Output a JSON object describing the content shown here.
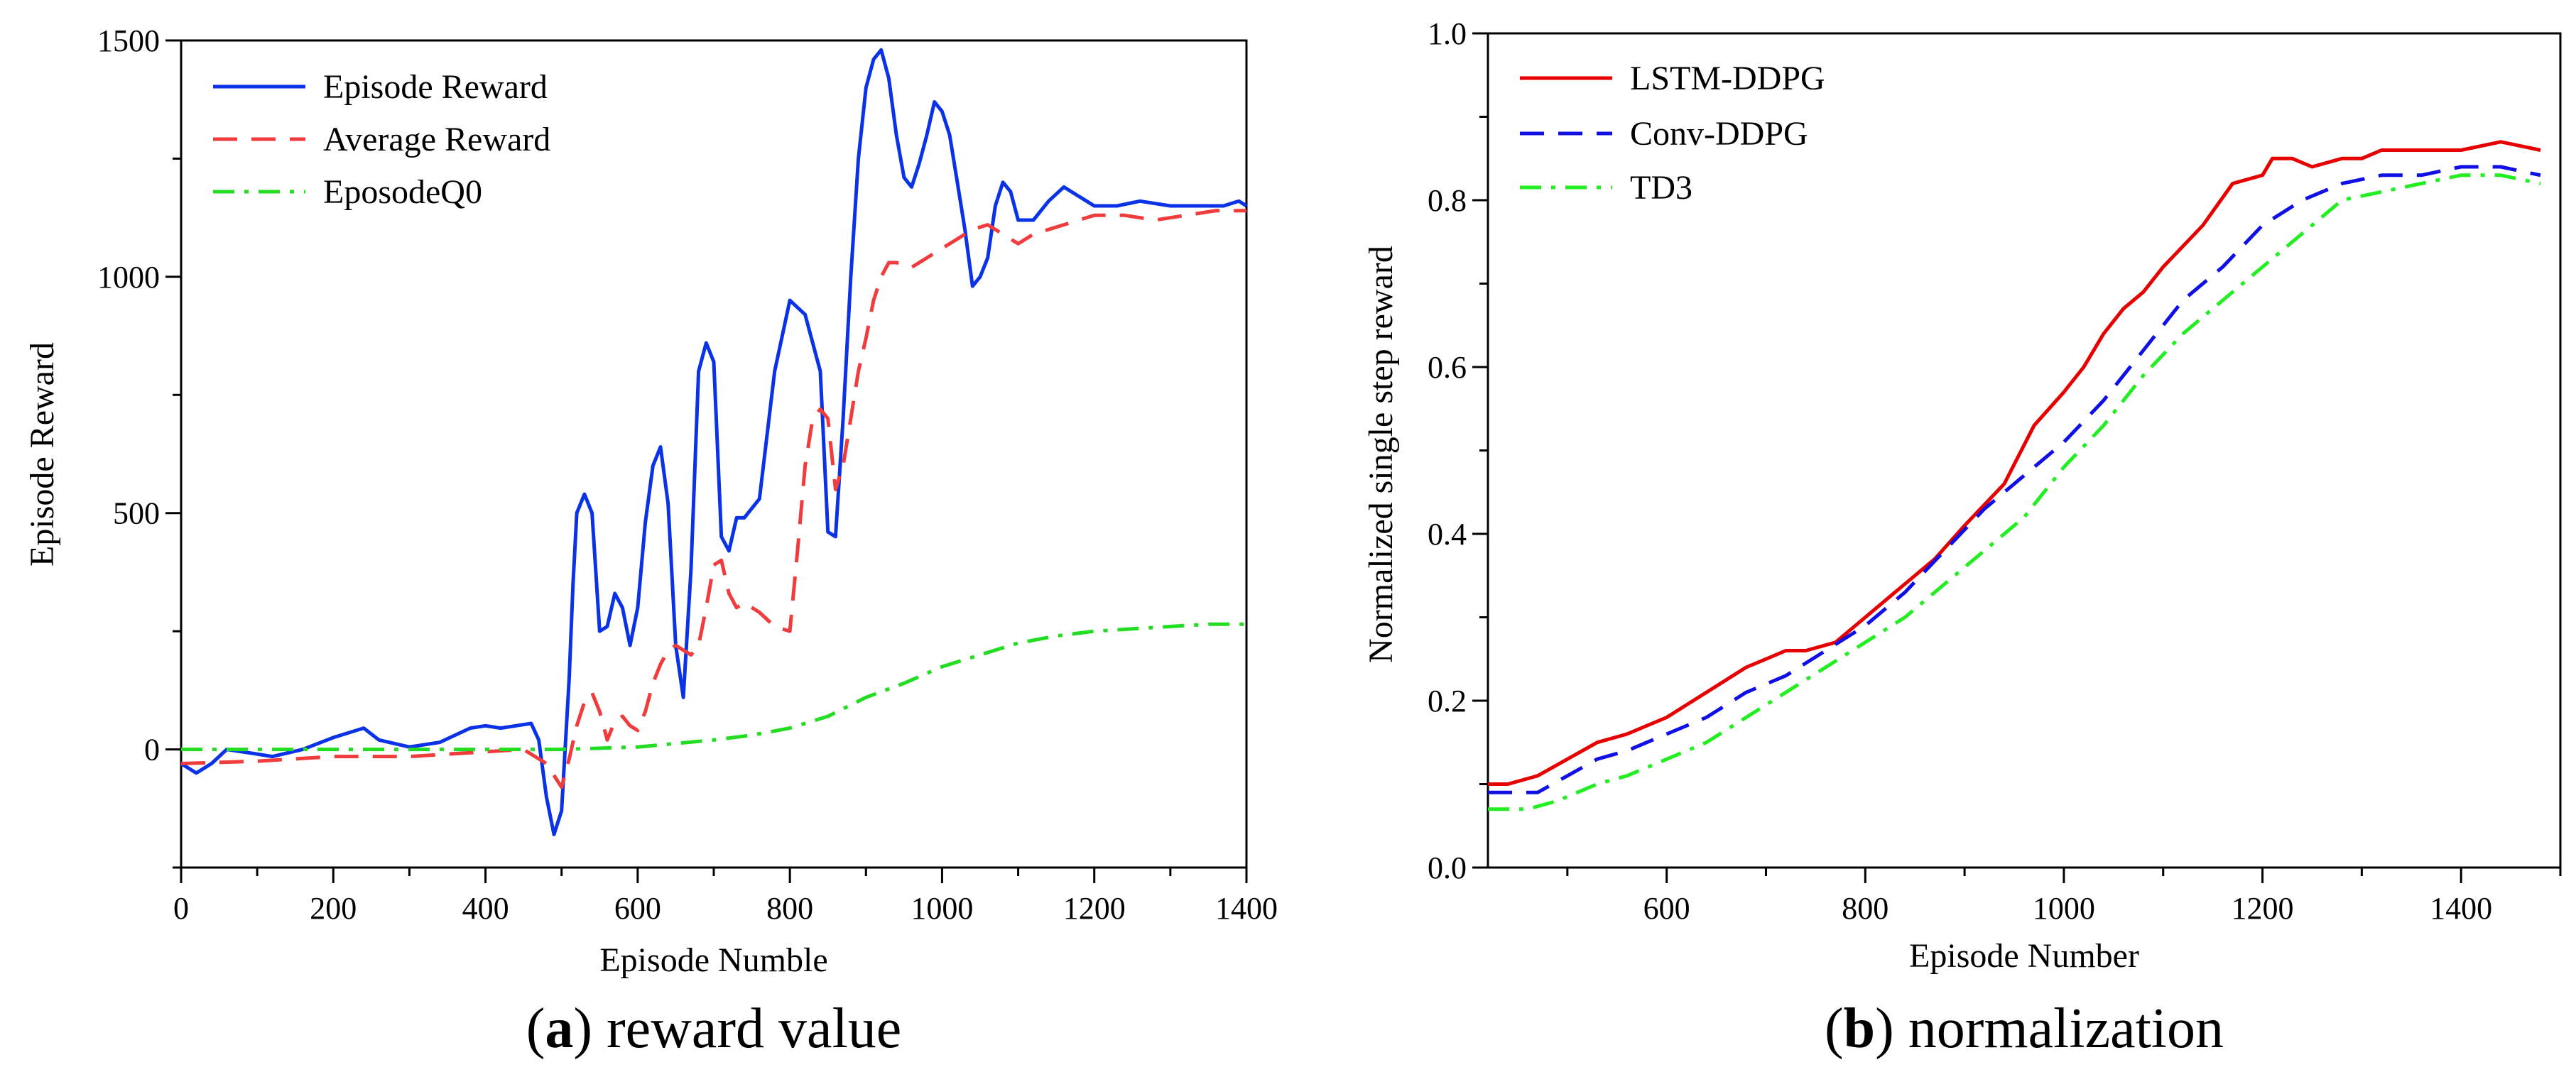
{
  "chart_data": [
    {
      "type": "line",
      "panel_letter": "a",
      "caption": "reward value",
      "xlabel": "Episode Numble",
      "ylabel": "Episode Reward",
      "xlim": [
        0,
        1400
      ],
      "ylim": [
        -250,
        1500
      ],
      "xticks": [
        0,
        200,
        400,
        600,
        800,
        1000,
        1200,
        1400
      ],
      "yticks": [
        0,
        500,
        1000,
        1500
      ],
      "legend_position": "top-left",
      "series": [
        {
          "name": "Episode Reward",
          "color": "#0a32e6",
          "dash": "solid",
          "x": [
            0,
            20,
            40,
            60,
            80,
            100,
            120,
            160,
            200,
            240,
            260,
            300,
            340,
            380,
            400,
            420,
            440,
            460,
            470,
            480,
            490,
            500,
            510,
            515,
            520,
            530,
            540,
            550,
            560,
            570,
            580,
            590,
            600,
            610,
            620,
            630,
            640,
            650,
            660,
            670,
            680,
            690,
            700,
            710,
            720,
            730,
            740,
            760,
            780,
            800,
            820,
            840,
            850,
            860,
            870,
            880,
            890,
            900,
            910,
            920,
            930,
            940,
            950,
            960,
            970,
            980,
            990,
            1000,
            1010,
            1020,
            1030,
            1040,
            1050,
            1060,
            1070,
            1080,
            1090,
            1100,
            1120,
            1140,
            1160,
            1180,
            1200,
            1230,
            1260,
            1300,
            1340,
            1370,
            1390,
            1400
          ],
          "y": [
            -30,
            -50,
            -30,
            0,
            -5,
            -10,
            -15,
            0,
            25,
            45,
            20,
            5,
            15,
            45,
            50,
            45,
            50,
            55,
            20,
            -100,
            -180,
            -130,
            150,
            350,
            500,
            540,
            500,
            250,
            260,
            330,
            300,
            220,
            300,
            480,
            600,
            640,
            520,
            220,
            110,
            380,
            800,
            860,
            820,
            450,
            420,
            490,
            490,
            530,
            800,
            950,
            920,
            800,
            460,
            450,
            700,
            1000,
            1250,
            1400,
            1460,
            1480,
            1420,
            1300,
            1210,
            1190,
            1240,
            1300,
            1370,
            1350,
            1300,
            1200,
            1100,
            980,
            1000,
            1040,
            1150,
            1200,
            1180,
            1120,
            1120,
            1160,
            1190,
            1170,
            1150,
            1150,
            1160,
            1150,
            1150,
            1150,
            1160,
            1150
          ]
        },
        {
          "name": "Average Reward",
          "color": "#f03c3c",
          "dash": "dash",
          "x": [
            0,
            100,
            200,
            300,
            400,
            450,
            480,
            500,
            510,
            520,
            530,
            540,
            550,
            560,
            570,
            580,
            590,
            600,
            610,
            620,
            630,
            640,
            650,
            660,
            670,
            680,
            690,
            700,
            710,
            720,
            730,
            740,
            760,
            780,
            800,
            810,
            820,
            830,
            840,
            850,
            860,
            870,
            880,
            890,
            900,
            910,
            920,
            930,
            940,
            960,
            980,
            1000,
            1020,
            1040,
            1060,
            1080,
            1100,
            1120,
            1160,
            1200,
            1240,
            1280,
            1320,
            1360,
            1400
          ],
          "y": [
            -30,
            -25,
            -15,
            -15,
            -5,
            0,
            -30,
            -80,
            -20,
            50,
            100,
            120,
            80,
            20,
            60,
            70,
            50,
            40,
            80,
            140,
            180,
            210,
            220,
            210,
            200,
            220,
            300,
            390,
            400,
            330,
            300,
            310,
            290,
            260,
            250,
            420,
            600,
            700,
            720,
            700,
            550,
            600,
            700,
            800,
            870,
            950,
            1000,
            1030,
            1030,
            1020,
            1040,
            1060,
            1080,
            1100,
            1110,
            1090,
            1070,
            1090,
            1110,
            1130,
            1130,
            1120,
            1130,
            1140,
            1140
          ]
        },
        {
          "name": "EposodeQ0",
          "color": "#22dd22",
          "dash": "dashdot",
          "x": [
            0,
            100,
            200,
            300,
            400,
            500,
            600,
            700,
            750,
            800,
            850,
            900,
            950,
            1000,
            1050,
            1100,
            1150,
            1200,
            1250,
            1300,
            1350,
            1400
          ],
          "y": [
            0,
            0,
            0,
            0,
            0,
            0,
            5,
            20,
            30,
            45,
            70,
            110,
            140,
            175,
            200,
            225,
            240,
            250,
            255,
            260,
            265,
            265
          ]
        }
      ]
    },
    {
      "type": "line",
      "panel_letter": "b",
      "caption": "normalization",
      "xlabel": "Episode Number",
      "ylabel": "Normalized single step reward",
      "xlim": [
        420,
        1500
      ],
      "ylim": [
        0.0,
        1.0
      ],
      "xticks": [
        600,
        800,
        1000,
        1200,
        1400
      ],
      "yticks": [
        0.0,
        0.2,
        0.4,
        0.6,
        0.8,
        1.0
      ],
      "ytick_labels": [
        "0.0",
        "0.2",
        "0.4",
        "0.6",
        "0.8",
        "1.0"
      ],
      "legend_position": "top-left",
      "series": [
        {
          "name": "LSTM-DDPG",
          "color": "#e60000",
          "dash": "solid",
          "x": [
            420,
            440,
            470,
            500,
            530,
            560,
            600,
            640,
            680,
            700,
            720,
            740,
            770,
            800,
            840,
            870,
            900,
            940,
            970,
            1000,
            1020,
            1040,
            1060,
            1080,
            1100,
            1140,
            1170,
            1200,
            1210,
            1230,
            1250,
            1280,
            1300,
            1320,
            1340,
            1370,
            1400,
            1440,
            1480
          ],
          "y": [
            0.1,
            0.1,
            0.11,
            0.13,
            0.15,
            0.16,
            0.18,
            0.21,
            0.24,
            0.25,
            0.26,
            0.26,
            0.27,
            0.3,
            0.34,
            0.37,
            0.41,
            0.46,
            0.53,
            0.57,
            0.6,
            0.64,
            0.67,
            0.69,
            0.72,
            0.77,
            0.82,
            0.83,
            0.85,
            0.85,
            0.84,
            0.85,
            0.85,
            0.86,
            0.86,
            0.86,
            0.86,
            0.87,
            0.86
          ]
        },
        {
          "name": "Conv-DDPG",
          "color": "#1010e6",
          "dash": "dash",
          "x": [
            420,
            470,
            500,
            530,
            560,
            600,
            640,
            680,
            720,
            760,
            800,
            840,
            880,
            920,
            960,
            1000,
            1040,
            1080,
            1120,
            1160,
            1200,
            1240,
            1280,
            1320,
            1360,
            1400,
            1440,
            1480
          ],
          "y": [
            0.09,
            0.09,
            0.11,
            0.13,
            0.14,
            0.16,
            0.18,
            0.21,
            0.23,
            0.26,
            0.29,
            0.33,
            0.38,
            0.43,
            0.47,
            0.51,
            0.56,
            0.62,
            0.68,
            0.72,
            0.77,
            0.8,
            0.82,
            0.83,
            0.83,
            0.84,
            0.84,
            0.83
          ]
        },
        {
          "name": "TD3",
          "color": "#22ee22",
          "dash": "dashdot",
          "x": [
            420,
            460,
            490,
            530,
            560,
            600,
            640,
            680,
            720,
            760,
            800,
            840,
            880,
            920,
            960,
            1000,
            1040,
            1080,
            1120,
            1160,
            1200,
            1240,
            1280,
            1320,
            1360,
            1400,
            1440,
            1480
          ],
          "y": [
            0.07,
            0.07,
            0.08,
            0.1,
            0.11,
            0.13,
            0.15,
            0.18,
            0.21,
            0.24,
            0.27,
            0.3,
            0.34,
            0.38,
            0.42,
            0.48,
            0.53,
            0.59,
            0.64,
            0.68,
            0.72,
            0.76,
            0.8,
            0.81,
            0.82,
            0.83,
            0.83,
            0.82
          ]
        }
      ]
    }
  ]
}
